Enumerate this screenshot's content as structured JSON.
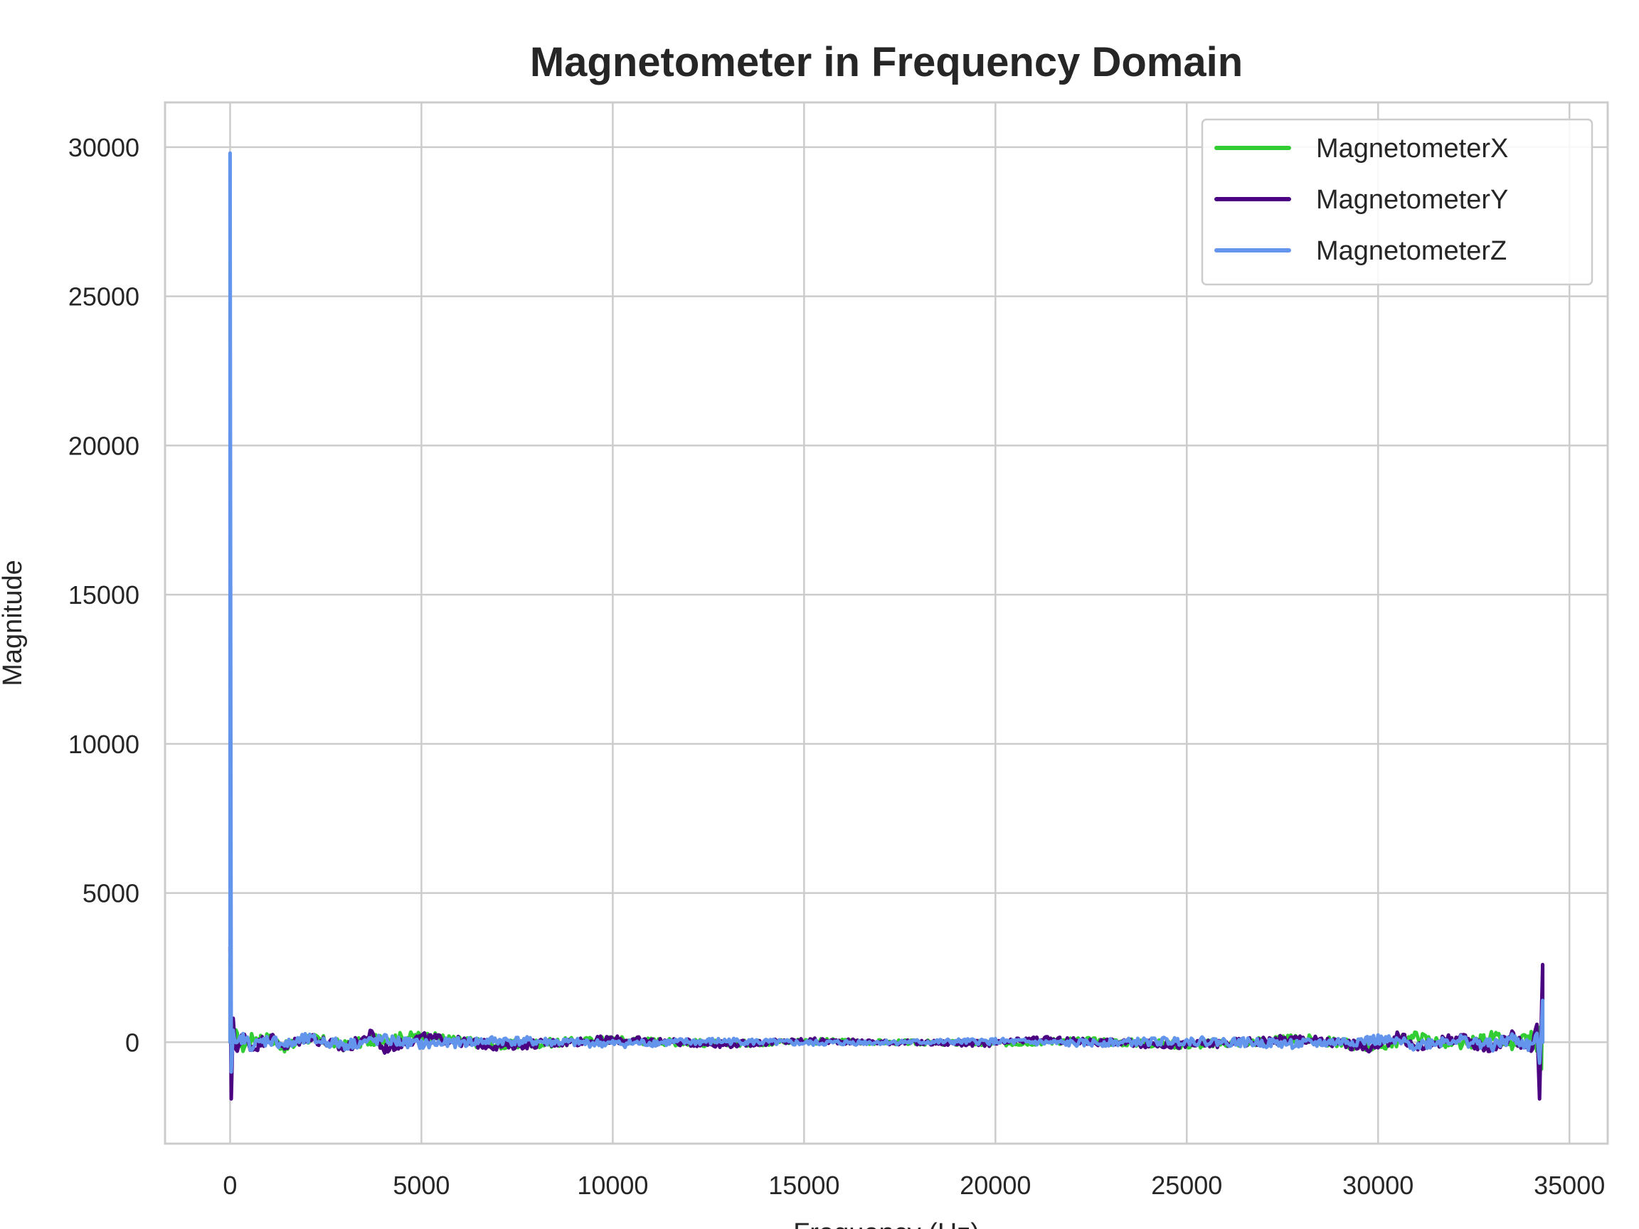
{
  "chart_data": {
    "type": "line",
    "title": "Magnetometer in Frequency Domain",
    "xlabel": "Frequency (Hz)",
    "ylabel": "Magnitude",
    "xlim": [
      -1700,
      36000
    ],
    "ylim": [
      -3400,
      31500
    ],
    "xticks": [
      0,
      5000,
      10000,
      15000,
      20000,
      25000,
      30000,
      35000
    ],
    "yticks": [
      0,
      5000,
      10000,
      15000,
      20000,
      25000,
      30000
    ],
    "grid": true,
    "legend_position": "top-right",
    "series": [
      {
        "name": "MagnetometerX",
        "color": "#32cd32",
        "peaks": [
          [
            0,
            2800
          ],
          [
            34300,
            2500
          ]
        ],
        "x": [
          0,
          30,
          80,
          150,
          300,
          600,
          1000,
          1500,
          2000,
          3000,
          4000,
          5000,
          7000,
          10000,
          13000,
          15000,
          17150,
          20000,
          22000,
          25000,
          28000,
          30000,
          31000,
          32000,
          33000,
          33500,
          34000,
          34150,
          34220,
          34270,
          34300
        ],
        "y": [
          2800,
          -900,
          500,
          250,
          -200,
          150,
          120,
          -180,
          150,
          -120,
          130,
          200,
          -100,
          80,
          -60,
          40,
          0,
          -40,
          60,
          -80,
          100,
          -150,
          200,
          -140,
          180,
          -120,
          160,
          -300,
          500,
          -900,
          2500
        ]
      },
      {
        "name": "MagnetometerY",
        "color": "#4b0082",
        "peaks": [
          [
            0,
            3200
          ],
          [
            34300,
            2600
          ]
        ],
        "x": [
          0,
          30,
          80,
          150,
          300,
          600,
          1000,
          1500,
          2000,
          3000,
          3700,
          4000,
          5000,
          7000,
          10000,
          13000,
          15000,
          17150,
          20000,
          21000,
          25000,
          28000,
          30000,
          30500,
          31000,
          32000,
          33000,
          33500,
          34000,
          34150,
          34220,
          34270,
          34300
        ],
        "y": [
          3200,
          -1900,
          800,
          -400,
          250,
          -200,
          180,
          -150,
          200,
          -220,
          260,
          -230,
          160,
          -120,
          90,
          -70,
          50,
          0,
          -50,
          90,
          -100,
          120,
          -200,
          250,
          -180,
          160,
          -200,
          220,
          -300,
          600,
          -1900,
          900,
          2600
        ]
      },
      {
        "name": "MagnetometerZ",
        "color": "#6495ed",
        "peaks": [
          [
            0,
            29800
          ],
          [
            34300,
            1400
          ]
        ],
        "x": [
          0,
          30,
          80,
          150,
          300,
          600,
          1000,
          1500,
          2000,
          3000,
          4000,
          5000,
          7000,
          10000,
          13000,
          15000,
          17150,
          20000,
          22000,
          25000,
          28000,
          30000,
          31000,
          32000,
          33000,
          33500,
          34000,
          34150,
          34220,
          34270,
          34300
        ],
        "y": [
          29800,
          -1000,
          400,
          -200,
          150,
          -120,
          100,
          -90,
          110,
          -80,
          90,
          -70,
          60,
          -50,
          40,
          -30,
          0,
          30,
          -40,
          50,
          -60,
          80,
          -90,
          100,
          -110,
          120,
          -150,
          300,
          -700,
          400,
          1400
        ]
      }
    ]
  }
}
